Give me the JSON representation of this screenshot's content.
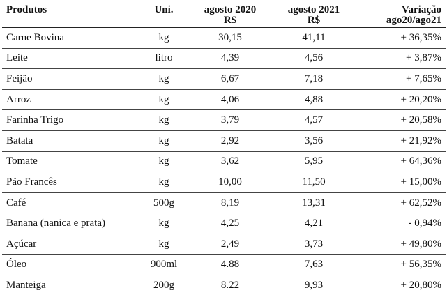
{
  "table": {
    "headers": {
      "produtos": "Produtos",
      "uni": "Uni.",
      "ago2020_line1": "agosto 2020",
      "ago2020_line2": "R$",
      "ago2021_line1": "agosto 2021",
      "ago2021_line2": "R$",
      "variacao_line1": "Variação",
      "variacao_line2": "ago20/ago21"
    },
    "rows": [
      {
        "produto": "Carne Bovina",
        "uni": "kg",
        "ago2020": "30,15",
        "ago2021": "41,11",
        "variacao": "+ 36,35%"
      },
      {
        "produto": "Leite",
        "uni": "litro",
        "ago2020": "4,39",
        "ago2021": "4,56",
        "variacao": "+ 3,87%"
      },
      {
        "produto": "Feijão",
        "uni": "kg",
        "ago2020": "6,67",
        "ago2021": "7,18",
        "variacao": "+ 7,65%"
      },
      {
        "produto": "Arroz",
        "uni": "kg",
        "ago2020": "4,06",
        "ago2021": "4,88",
        "variacao": "+ 20,20%"
      },
      {
        "produto": "Farinha Trigo",
        "uni": "kg",
        "ago2020": "3,79",
        "ago2021": "4,57",
        "variacao": "+ 20,58%"
      },
      {
        "produto": "Batata",
        "uni": "kg",
        "ago2020": "2,92",
        "ago2021": "3,56",
        "variacao": "+ 21,92%"
      },
      {
        "produto": "Tomate",
        "uni": "kg",
        "ago2020": "3,62",
        "ago2021": "5,95",
        "variacao": "+ 64,36%"
      },
      {
        "produto": "Pão Francês",
        "uni": "kg",
        "ago2020": "10,00",
        "ago2021": "11,50",
        "variacao": "+ 15,00%"
      },
      {
        "produto": "Café",
        "uni": "500g",
        "ago2020": "8,19",
        "ago2021": "13,31",
        "variacao": "+ 62,52%"
      },
      {
        "produto": "Banana (nanica e prata)",
        "uni": "kg",
        "ago2020": "4,25",
        "ago2021": "4,21",
        "variacao": "- 0,94%"
      },
      {
        "produto": "Açúcar",
        "uni": "kg",
        "ago2020": "2,49",
        "ago2021": "3,73",
        "variacao": "+ 49,80%"
      },
      {
        "produto": "Óleo",
        "uni": "900ml",
        "ago2020": "4.88",
        "ago2021": "7,63",
        "variacao": "+ 56,35%"
      },
      {
        "produto": "Manteiga",
        "uni": "200g",
        "ago2020": "8.22",
        "ago2021": "9,93",
        "variacao": "+ 20,80%"
      }
    ]
  }
}
